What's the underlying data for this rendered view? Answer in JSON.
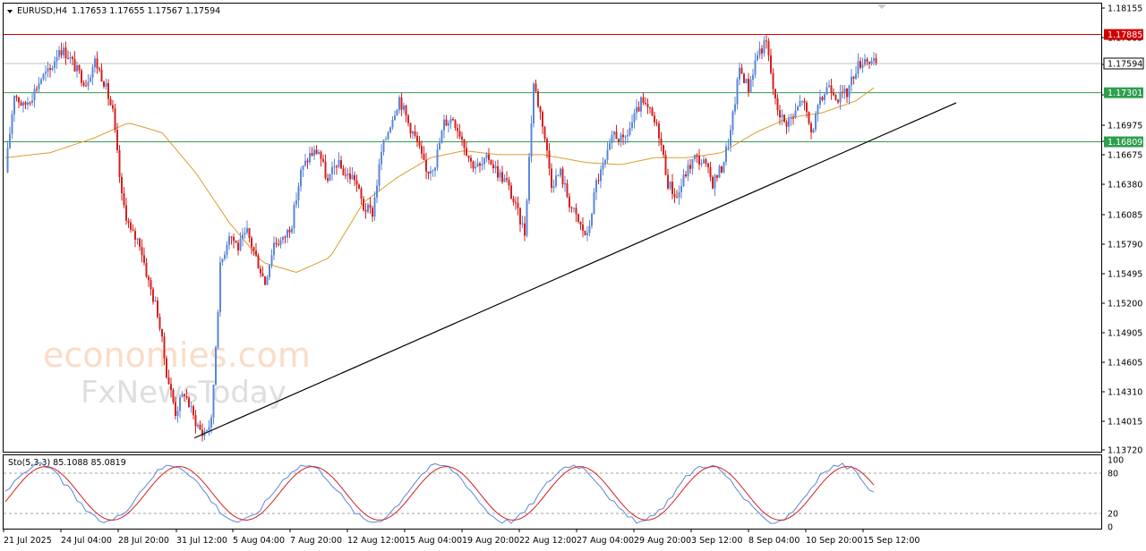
{
  "header": {
    "symbol": "EURUSD,H4",
    "ohlc": "1.17653 1.17655 1.17567 1.17594"
  },
  "watermark": {
    "line1": "economies.com",
    "line2": "FxNewsToday"
  },
  "oscillator": {
    "label": "Sto(5,3,3) 85.1088 85.0819",
    "level_labels": [
      "100",
      "80",
      "20",
      "0"
    ]
  },
  "chart_data": {
    "type": "candlestick",
    "symbol": "EURUSD",
    "timeframe": "H4",
    "ylim": [
      1.1372,
      1.1815
    ],
    "price_ticks": [
      "1.18155",
      "1.17885",
      "1.17594",
      "1.17301",
      "1.16975",
      "1.16809",
      "1.16675",
      "1.16380",
      "1.16085",
      "1.15790",
      "1.15495",
      "1.15200",
      "1.14905",
      "1.14605",
      "1.14310",
      "1.14015",
      "1.13720"
    ],
    "x_labels": [
      "21 Jul 2025",
      "24 Jul 04:00",
      "28 Jul 20:00",
      "31 Jul 12:00",
      "5 Aug 04:00",
      "7 Aug 20:00",
      "12 Aug 12:00",
      "15 Aug 04:00",
      "19 Aug 20:00",
      "22 Aug 12:00",
      "27 Aug 04:00",
      "29 Aug 20:00",
      "3 Sep 12:00",
      "8 Sep 04:00",
      "10 Sep 20:00",
      "15 Sep 12:00"
    ],
    "levels": [
      {
        "value": 1.17885,
        "color": "#d40000",
        "kind": "resistance",
        "label": "1.17885"
      },
      {
        "value": 1.17594,
        "color": "#000000",
        "kind": "bid",
        "label": "1.17594"
      },
      {
        "value": 1.17301,
        "color": "#2e9e4f",
        "kind": "support",
        "label": "1.17301"
      },
      {
        "value": 1.16809,
        "color": "#2e9e4f",
        "kind": "support",
        "label": "1.16809"
      }
    ],
    "trendline": {
      "from": [
        "31 Jul",
        1.1384
      ],
      "to": [
        "16 Sep",
        1.172
      ],
      "color": "#000000"
    },
    "moving_average": {
      "color": "#e09a2c"
    },
    "colors": {
      "bull": "#5b87d9",
      "bear": "#d42020"
    },
    "close_path": [
      [
        0,
        1.165
      ],
      [
        4,
        1.173
      ],
      [
        8,
        1.1716
      ],
      [
        12,
        1.1728
      ],
      [
        16,
        1.1745
      ],
      [
        20,
        1.1752
      ],
      [
        24,
        1.1775
      ],
      [
        28,
        1.1768
      ],
      [
        32,
        1.1752
      ],
      [
        36,
        1.174
      ],
      [
        40,
        1.1762
      ],
      [
        44,
        1.1742
      ],
      [
        48,
        1.171
      ],
      [
        52,
        1.1625
      ],
      [
        56,
        1.159
      ],
      [
        60,
        1.158
      ],
      [
        64,
        1.154
      ],
      [
        68,
        1.151
      ],
      [
        72,
        1.145
      ],
      [
        76,
        1.141
      ],
      [
        80,
        1.143
      ],
      [
        84,
        1.1405
      ],
      [
        88,
        1.1388
      ],
      [
        92,
        1.14
      ],
      [
        96,
        1.1555
      ],
      [
        100,
        1.159
      ],
      [
        104,
        1.1575
      ],
      [
        108,
        1.159
      ],
      [
        112,
        1.1565
      ],
      [
        116,
        1.154
      ],
      [
        120,
        1.158
      ],
      [
        124,
        1.1582
      ],
      [
        128,
        1.16
      ],
      [
        132,
        1.165
      ],
      [
        136,
        1.1668
      ],
      [
        140,
        1.1672
      ],
      [
        144,
        1.164
      ],
      [
        148,
        1.166
      ],
      [
        152,
        1.1648
      ],
      [
        156,
        1.1645
      ],
      [
        160,
        1.1615
      ],
      [
        164,
        1.161
      ],
      [
        168,
        1.167
      ],
      [
        172,
        1.17
      ],
      [
        176,
        1.1725
      ],
      [
        180,
        1.17
      ],
      [
        184,
        1.168
      ],
      [
        188,
        1.165
      ],
      [
        192,
        1.166
      ],
      [
        196,
        1.17
      ],
      [
        200,
        1.1705
      ],
      [
        204,
        1.1685
      ],
      [
        208,
        1.166
      ],
      [
        212,
        1.1655
      ],
      [
        216,
        1.1665
      ],
      [
        220,
        1.165
      ],
      [
        224,
        1.164
      ],
      [
        228,
        1.1615
      ],
      [
        232,
        1.159
      ],
      [
        236,
        1.174
      ],
      [
        240,
        1.17
      ],
      [
        244,
        1.164
      ],
      [
        248,
        1.165
      ],
      [
        252,
        1.162
      ],
      [
        256,
        1.16
      ],
      [
        260,
        1.1585
      ],
      [
        264,
        1.164
      ],
      [
        268,
        1.166
      ],
      [
        272,
        1.169
      ],
      [
        276,
        1.168
      ],
      [
        280,
        1.17
      ],
      [
        284,
        1.172
      ],
      [
        288,
        1.171
      ],
      [
        292,
        1.169
      ],
      [
        296,
        1.164
      ],
      [
        300,
        1.1625
      ],
      [
        304,
        1.165
      ],
      [
        308,
        1.1665
      ],
      [
        312,
        1.166
      ],
      [
        316,
        1.164
      ],
      [
        320,
        1.1655
      ],
      [
        324,
        1.169
      ],
      [
        328,
        1.1755
      ],
      [
        332,
        1.1735
      ],
      [
        336,
        1.177
      ],
      [
        340,
        1.178
      ],
      [
        344,
        1.172
      ],
      [
        348,
        1.17
      ],
      [
        352,
        1.1705
      ],
      [
        356,
        1.1725
      ],
      [
        360,
        1.169
      ],
      [
        364,
        1.172
      ],
      [
        368,
        1.174
      ],
      [
        372,
        1.1725
      ],
      [
        376,
        1.173
      ],
      [
        380,
        1.1755
      ],
      [
        384,
        1.1765
      ],
      [
        388,
        1.1759
      ]
    ],
    "ma_path": [
      [
        0,
        1.1665
      ],
      [
        20,
        1.167
      ],
      [
        40,
        1.1685
      ],
      [
        55,
        1.17
      ],
      [
        70,
        1.169
      ],
      [
        85,
        1.165
      ],
      [
        100,
        1.16
      ],
      [
        115,
        1.156
      ],
      [
        130,
        1.155
      ],
      [
        145,
        1.1565
      ],
      [
        160,
        1.162
      ],
      [
        175,
        1.1645
      ],
      [
        190,
        1.1665
      ],
      [
        205,
        1.1672
      ],
      [
        220,
        1.1668
      ],
      [
        240,
        1.1668
      ],
      [
        260,
        1.166
      ],
      [
        275,
        1.1658
      ],
      [
        290,
        1.1665
      ],
      [
        305,
        1.1665
      ],
      [
        320,
        1.167
      ],
      [
        335,
        1.169
      ],
      [
        350,
        1.1705
      ],
      [
        365,
        1.171
      ],
      [
        380,
        1.1722
      ],
      [
        388,
        1.1735
      ]
    ]
  }
}
